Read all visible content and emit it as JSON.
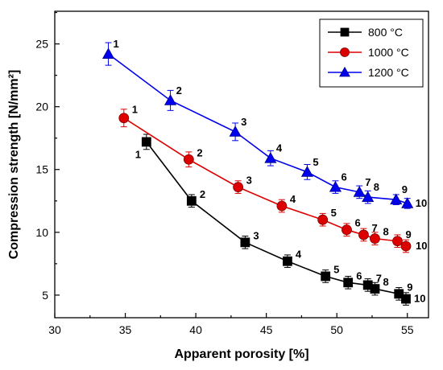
{
  "chart_data": {
    "type": "line",
    "xlabel": "Apparent porosity [%]",
    "ylabel": "Compression strength [N/mm²]",
    "xlim": [
      30,
      56.5
    ],
    "ylim": [
      3.2,
      27.6
    ],
    "xticks": [
      30,
      35,
      40,
      45,
      50,
      55
    ],
    "yticks": [
      5,
      10,
      15,
      20,
      25
    ],
    "legend_position": "top-right",
    "series": [
      {
        "name": "800 °C",
        "color": "#000000",
        "marker": "square",
        "x": [
          36.5,
          39.7,
          43.5,
          46.5,
          49.2,
          50.8,
          52.2,
          52.7,
          54.4,
          54.9
        ],
        "y": [
          17.2,
          12.5,
          9.2,
          7.7,
          6.5,
          6.0,
          5.8,
          5.5,
          5.1,
          4.7
        ],
        "err": [
          0.6,
          0.5,
          0.5,
          0.5,
          0.5,
          0.5,
          0.5,
          0.5,
          0.5,
          0.5
        ],
        "labels": [
          "1",
          "2",
          "3",
          "4",
          "5",
          "6",
          "7",
          "8",
          "9",
          "10"
        ]
      },
      {
        "name": "1000 °C",
        "color": "#dd0000",
        "marker": "circle",
        "x": [
          34.9,
          39.5,
          43.0,
          46.1,
          49.0,
          50.7,
          51.9,
          52.7,
          54.3,
          54.9
        ],
        "y": [
          19.1,
          15.8,
          13.6,
          12.1,
          11.0,
          10.2,
          9.8,
          9.5,
          9.3,
          8.9
        ],
        "err": [
          0.7,
          0.6,
          0.5,
          0.5,
          0.5,
          0.5,
          0.5,
          0.5,
          0.5,
          0.5
        ],
        "labels": [
          "1",
          "2",
          "3",
          "4",
          "5",
          "6",
          "7",
          "8",
          "9",
          "10"
        ]
      },
      {
        "name": "1200 °C",
        "color": "#0000ee",
        "marker": "triangle",
        "x": [
          33.8,
          38.2,
          42.8,
          45.3,
          47.9,
          49.9,
          51.6,
          52.2,
          54.2,
          55.0
        ],
        "y": [
          24.2,
          20.5,
          18.0,
          15.9,
          14.8,
          13.6,
          13.2,
          12.8,
          12.6,
          12.3
        ],
        "err": [
          0.9,
          0.8,
          0.7,
          0.6,
          0.6,
          0.5,
          0.5,
          0.5,
          0.4,
          0.4
        ],
        "labels": [
          "1",
          "2",
          "3",
          "4",
          "5",
          "6",
          "7",
          "8",
          "9",
          "10"
        ]
      }
    ]
  }
}
